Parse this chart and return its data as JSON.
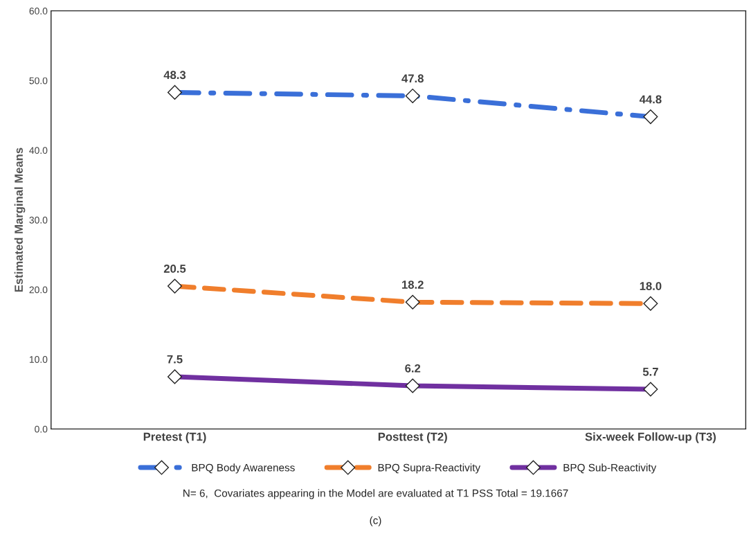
{
  "chart_data": {
    "type": "line",
    "ylabel": "Estimated Marginal Means",
    "categories": [
      "Pretest (T1)",
      "Posttest (T2)",
      "Six-week Follow-up (T3)"
    ],
    "series": [
      {
        "name": "BPQ Body Awareness",
        "color": "#3a6fd8",
        "values": [
          48.3,
          47.8,
          44.8
        ],
        "value_labels": [
          "48.3",
          "47.8",
          "44.8"
        ],
        "line_style": "dashdot"
      },
      {
        "name": "BPQ Supra-Reactivity",
        "color": "#f07e2c",
        "values": [
          20.5,
          18.2,
          18.0
        ],
        "value_labels": [
          "20.5",
          "18.2",
          "18.0"
        ],
        "line_style": "dashed"
      },
      {
        "name": "BPQ Sub-Reactivity",
        "color": "#7030a0",
        "values": [
          7.5,
          6.2,
          5.7
        ],
        "value_labels": [
          "7.5",
          "6.2",
          "5.7"
        ],
        "line_style": "solid"
      }
    ],
    "ylim": [
      0,
      60
    ],
    "yticks": [
      {
        "value": 0,
        "label": "0.0"
      },
      {
        "value": 10,
        "label": "10.0"
      },
      {
        "value": 20,
        "label": "20.0"
      },
      {
        "value": 30,
        "label": "30.0"
      },
      {
        "value": 40,
        "label": "40.0"
      },
      {
        "value": 50,
        "label": "50.0"
      },
      {
        "value": 60,
        "label": "60.0"
      }
    ],
    "marker": "diamond",
    "legend": "bottom",
    "grid": false,
    "annotations": [
      "N= 6,  Covariates appearing in the Model are evaluated at T1 PSS Total = 19.1667",
      "(c)"
    ]
  }
}
